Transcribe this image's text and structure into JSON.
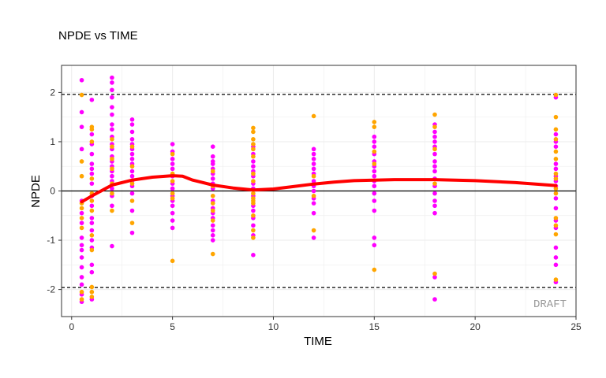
{
  "chart_data": {
    "type": "scatter",
    "title": "NPDE vs TIME",
    "xlabel": "TIME",
    "ylabel": "NPDE",
    "xlim": [
      -0.5,
      25
    ],
    "ylim": [
      -2.55,
      2.55
    ],
    "x_ticks": [
      0,
      5,
      10,
      15,
      20,
      25
    ],
    "y_ticks": [
      -2,
      -1,
      0,
      1,
      2
    ],
    "grid": true,
    "reference_lines": {
      "zero": 0,
      "dashed": [
        -1.96,
        1.96
      ]
    },
    "watermark": "DRAFT",
    "colors": {
      "series_a": "#ff00ff",
      "series_b": "#ffa500",
      "smooth": "#ff0000",
      "panel_border": "#333333",
      "grid": "#ebebeb"
    },
    "series": [
      {
        "color": "#ff00ff",
        "points": [
          [
            0.5,
            2.25
          ],
          [
            0.5,
            1.6
          ],
          [
            0.5,
            1.3
          ],
          [
            0.5,
            0.85
          ],
          [
            0.5,
            -0.2
          ],
          [
            0.5,
            -0.45
          ],
          [
            0.5,
            -0.65
          ],
          [
            0.5,
            -0.95
          ],
          [
            0.5,
            -1.1
          ],
          [
            0.5,
            -1.2
          ],
          [
            0.5,
            -1.35
          ],
          [
            0.5,
            -1.55
          ],
          [
            0.5,
            -1.75
          ],
          [
            0.5,
            -1.9
          ],
          [
            0.5,
            -2.1
          ],
          [
            0.5,
            -2.25
          ],
          [
            1,
            1.85
          ],
          [
            1,
            1.15
          ],
          [
            1,
            0.95
          ],
          [
            1,
            0.75
          ],
          [
            1,
            0.55
          ],
          [
            1,
            0.45
          ],
          [
            1,
            0.35
          ],
          [
            1,
            0.15
          ],
          [
            1,
            -0.1
          ],
          [
            1,
            -0.3
          ],
          [
            1,
            -0.55
          ],
          [
            1,
            -0.65
          ],
          [
            1,
            -0.8
          ],
          [
            1,
            -1.0
          ],
          [
            1,
            -1.15
          ],
          [
            1,
            -1.5
          ],
          [
            1,
            -1.65
          ],
          [
            1,
            -2.2
          ],
          [
            2,
            2.3
          ],
          [
            2,
            2.2
          ],
          [
            2,
            2.05
          ],
          [
            2,
            1.9
          ],
          [
            2,
            1.7
          ],
          [
            2,
            1.55
          ],
          [
            2,
            1.35
          ],
          [
            2,
            1.25
          ],
          [
            2,
            1.1
          ],
          [
            2,
            0.95
          ],
          [
            2,
            0.85
          ],
          [
            2,
            0.7
          ],
          [
            2,
            0.6
          ],
          [
            2,
            0.5
          ],
          [
            2,
            0.4
          ],
          [
            2,
            0.3
          ],
          [
            2,
            0.2
          ],
          [
            2,
            0.05
          ],
          [
            2,
            -0.1
          ],
          [
            2,
            -0.3
          ],
          [
            2,
            -1.12
          ],
          [
            3,
            1.45
          ],
          [
            3,
            1.35
          ],
          [
            3,
            1.2
          ],
          [
            3,
            1.05
          ],
          [
            3,
            0.95
          ],
          [
            3,
            0.85
          ],
          [
            3,
            0.75
          ],
          [
            3,
            0.65
          ],
          [
            3,
            0.55
          ],
          [
            3,
            0.4
          ],
          [
            3,
            0.3
          ],
          [
            3,
            0.2
          ],
          [
            3,
            0.1
          ],
          [
            3,
            -0.05
          ],
          [
            3,
            -0.4
          ],
          [
            3,
            -0.85
          ],
          [
            5,
            0.95
          ],
          [
            5,
            0.8
          ],
          [
            5,
            0.65
          ],
          [
            5,
            0.55
          ],
          [
            5,
            0.45
          ],
          [
            5,
            0.3
          ],
          [
            5,
            0.15
          ],
          [
            5,
            0.05
          ],
          [
            5,
            -0.1
          ],
          [
            5,
            -0.2
          ],
          [
            5,
            -0.3
          ],
          [
            5,
            -0.45
          ],
          [
            5,
            -0.6
          ],
          [
            5,
            -0.75
          ],
          [
            7,
            0.9
          ],
          [
            7,
            0.7
          ],
          [
            7,
            0.6
          ],
          [
            7,
            0.55
          ],
          [
            7,
            0.45
          ],
          [
            7,
            0.35
          ],
          [
            7,
            0.25
          ],
          [
            7,
            0.15
          ],
          [
            7,
            0.05
          ],
          [
            7,
            -0.2
          ],
          [
            7,
            -0.35
          ],
          [
            7,
            -0.45
          ],
          [
            7,
            -0.55
          ],
          [
            7,
            -0.7
          ],
          [
            7,
            -0.8
          ],
          [
            7,
            -0.9
          ],
          [
            7,
            -1.0
          ],
          [
            9,
            0.9
          ],
          [
            9,
            0.75
          ],
          [
            9,
            0.6
          ],
          [
            9,
            0.5
          ],
          [
            9,
            0.4
          ],
          [
            9,
            0.3
          ],
          [
            9,
            0.15
          ],
          [
            9,
            0.05
          ],
          [
            9,
            -0.1
          ],
          [
            9,
            -0.3
          ],
          [
            9,
            -0.4
          ],
          [
            9,
            -0.55
          ],
          [
            9,
            -0.7
          ],
          [
            9,
            -0.9
          ],
          [
            9,
            -1.3
          ],
          [
            12,
            0.85
          ],
          [
            12,
            0.75
          ],
          [
            12,
            0.65
          ],
          [
            12,
            0.55
          ],
          [
            12,
            0.45
          ],
          [
            12,
            0.35
          ],
          [
            12,
            0.2
          ],
          [
            12,
            0.1
          ],
          [
            12,
            0.0
          ],
          [
            12,
            -0.15
          ],
          [
            12,
            -0.25
          ],
          [
            12,
            -0.45
          ],
          [
            12,
            -0.95
          ],
          [
            15,
            1.1
          ],
          [
            15,
            1.0
          ],
          [
            15,
            0.9
          ],
          [
            15,
            0.75
          ],
          [
            15,
            0.6
          ],
          [
            15,
            0.5
          ],
          [
            15,
            0.4
          ],
          [
            15,
            0.3
          ],
          [
            15,
            0.2
          ],
          [
            15,
            0.1
          ],
          [
            15,
            -0.05
          ],
          [
            15,
            -0.2
          ],
          [
            15,
            -0.4
          ],
          [
            15,
            -0.95
          ],
          [
            15,
            -1.1
          ],
          [
            18,
            1.35
          ],
          [
            18,
            1.2
          ],
          [
            18,
            1.1
          ],
          [
            18,
            1.0
          ],
          [
            18,
            0.9
          ],
          [
            18,
            0.75
          ],
          [
            18,
            0.6
          ],
          [
            18,
            0.5
          ],
          [
            18,
            0.4
          ],
          [
            18,
            0.25
          ],
          [
            18,
            0.1
          ],
          [
            18,
            -0.05
          ],
          [
            18,
            -0.2
          ],
          [
            18,
            -0.3
          ],
          [
            18,
            -0.45
          ],
          [
            18,
            -1.75
          ],
          [
            18,
            -2.2
          ],
          [
            24,
            1.9
          ],
          [
            24,
            1.15
          ],
          [
            24,
            1.0
          ],
          [
            24,
            0.9
          ],
          [
            24,
            0.55
          ],
          [
            24,
            0.45
          ],
          [
            24,
            0.3
          ],
          [
            24,
            0.2
          ],
          [
            24,
            0.1
          ],
          [
            24,
            -0.15
          ],
          [
            24,
            -0.35
          ],
          [
            24,
            -0.6
          ],
          [
            24,
            -0.75
          ],
          [
            24,
            -1.15
          ],
          [
            24,
            -1.35
          ],
          [
            24,
            -1.5
          ],
          [
            24,
            -1.85
          ]
        ]
      },
      {
        "color": "#ffa500",
        "points": [
          [
            0.5,
            1.95
          ],
          [
            0.5,
            0.6
          ],
          [
            0.5,
            0.3
          ],
          [
            0.5,
            -0.25
          ],
          [
            0.5,
            -0.35
          ],
          [
            0.5,
            -0.55
          ],
          [
            0.5,
            -0.75
          ],
          [
            0.5,
            -2.05
          ],
          [
            0.5,
            -2.2
          ],
          [
            1,
            1.3
          ],
          [
            1,
            1.25
          ],
          [
            1,
            1.0
          ],
          [
            1,
            0.25
          ],
          [
            1,
            -0.05
          ],
          [
            1,
            -0.2
          ],
          [
            1,
            -0.4
          ],
          [
            1,
            -0.9
          ],
          [
            1,
            -1.2
          ],
          [
            1,
            -1.95
          ],
          [
            1,
            -2.05
          ],
          [
            1,
            -2.15
          ],
          [
            2,
            1.05
          ],
          [
            2,
            0.9
          ],
          [
            2,
            0.65
          ],
          [
            2,
            0.45
          ],
          [
            2,
            0.15
          ],
          [
            2,
            -0.05
          ],
          [
            2,
            -0.4
          ],
          [
            3,
            0.9
          ],
          [
            3,
            0.5
          ],
          [
            3,
            0.15
          ],
          [
            3,
            -0.2
          ],
          [
            3,
            -0.65
          ],
          [
            5,
            0.75
          ],
          [
            5,
            0.35
          ],
          [
            5,
            0.2
          ],
          [
            5,
            -0.05
          ],
          [
            5,
            -0.15
          ],
          [
            5,
            -1.42
          ],
          [
            7,
            0.4
          ],
          [
            7,
            0.1
          ],
          [
            7,
            -0.1
          ],
          [
            7,
            -0.25
          ],
          [
            7,
            -0.4
          ],
          [
            7,
            -0.6
          ],
          [
            7,
            -1.28
          ],
          [
            9,
            1.28
          ],
          [
            9,
            1.2
          ],
          [
            9,
            1.05
          ],
          [
            9,
            0.95
          ],
          [
            9,
            0.85
          ],
          [
            9,
            0.7
          ],
          [
            9,
            0.35
          ],
          [
            9,
            0.2
          ],
          [
            9,
            -0.05
          ],
          [
            9,
            -0.15
          ],
          [
            9,
            -0.2
          ],
          [
            9,
            -0.25
          ],
          [
            9,
            -0.5
          ],
          [
            9,
            -0.8
          ],
          [
            9,
            -0.95
          ],
          [
            12,
            1.52
          ],
          [
            12,
            0.3
          ],
          [
            12,
            -0.1
          ],
          [
            12,
            -0.8
          ],
          [
            15,
            1.4
          ],
          [
            15,
            1.3
          ],
          [
            15,
            0.8
          ],
          [
            15,
            0.55
          ],
          [
            15,
            -1.6
          ],
          [
            18,
            1.55
          ],
          [
            18,
            1.3
          ],
          [
            18,
            0.85
          ],
          [
            18,
            0.15
          ],
          [
            18,
            -1.68
          ],
          [
            24,
            1.95
          ],
          [
            24,
            1.5
          ],
          [
            24,
            1.25
          ],
          [
            24,
            1.05
          ],
          [
            24,
            0.8
          ],
          [
            24,
            0.65
          ],
          [
            24,
            0.35
          ],
          [
            24,
            0.25
          ],
          [
            24,
            0.05
          ],
          [
            24,
            -0.05
          ],
          [
            24,
            -0.55
          ],
          [
            24,
            -0.7
          ],
          [
            24,
            -0.88
          ],
          [
            24,
            -1.8
          ]
        ]
      }
    ],
    "smooth_line": {
      "color": "#ff0000",
      "x": [
        0.5,
        1,
        2,
        3,
        4,
        5,
        5.5,
        6,
        7,
        8,
        9,
        10,
        11,
        12,
        13,
        14,
        15,
        16,
        18,
        20,
        22,
        24
      ],
      "y": [
        -0.22,
        -0.1,
        0.12,
        0.22,
        0.28,
        0.31,
        0.3,
        0.22,
        0.12,
        0.06,
        0.02,
        0.04,
        0.09,
        0.14,
        0.18,
        0.21,
        0.22,
        0.23,
        0.23,
        0.21,
        0.17,
        0.11
      ]
    }
  }
}
